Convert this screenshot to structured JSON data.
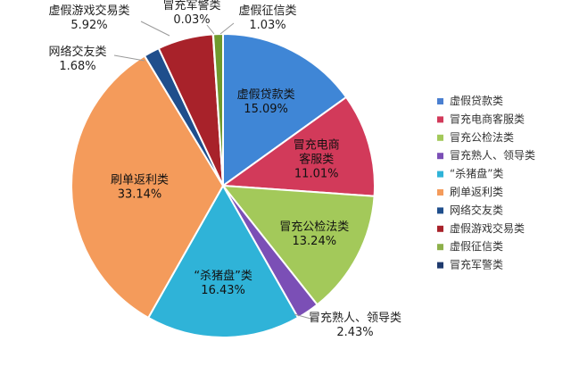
{
  "chart_data": {
    "type": "pie",
    "title": "",
    "categories": [
      "虚假贷款类",
      "冒充电商客服类",
      "冒充公检法类",
      "冒充熟人、领导类",
      "“杀猪盘”类",
      "刷单返利类",
      "网络交友类",
      "虚假游戏交易类",
      "冒充军警类",
      "虚假征信类"
    ],
    "legend_labels": [
      "虚假贷款类",
      "冒充电商客服类",
      "冒充公检法类",
      "冒充熟人、领导类",
      "“杀猪盘”类",
      "刷单返利类",
      "网络交友类",
      "虚假游戏交易类",
      "虚假征信类",
      "冒充军警类"
    ],
    "slice_labels": [
      "虚假贷款类",
      "冒充电商\n客服类",
      "冒充公检法类",
      "冒充熟人、领导类",
      "“杀猪盘”类",
      "刷单返利类",
      "网络交友类",
      "虚假游戏交易类",
      "冒充军警类",
      "虚假征信类"
    ],
    "values": [
      15.09,
      11.01,
      13.24,
      2.43,
      16.43,
      33.14,
      1.68,
      5.92,
      0.03,
      1.03
    ],
    "percent_labels": [
      "15.09%",
      "11.01%",
      "13.24%",
      "2.43%",
      "16.43%",
      "33.14%",
      "1.68%",
      "5.92%",
      "0.03%",
      "1.03%"
    ],
    "colors": [
      "#3f86d6",
      "#d23a5a",
      "#a3c95a",
      "#7b4fb6",
      "#2fb3d8",
      "#f49b5b",
      "#1f4e8c",
      "#a8222a",
      "#7a8f3a",
      "#6f9a2e"
    ],
    "legend_colors": [
      "#4a7fd0",
      "#d23a5a",
      "#a3c95a",
      "#7b4fb6",
      "#2fb3d8",
      "#f49b5b",
      "#1f4e8c",
      "#a8222a",
      "#8db04a",
      "#1f3a6e"
    ],
    "legend_position": "right"
  }
}
